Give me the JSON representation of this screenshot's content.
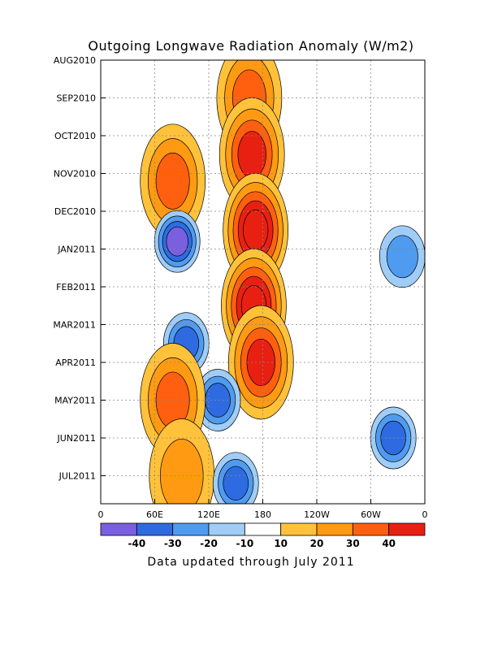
{
  "chart_data": {
    "type": "heatmap",
    "title": "Outgoing Longwave Radiation Anomaly (W/m2)",
    "footer": "Data updated through July 2011",
    "x_ticks": [
      "0",
      "60E",
      "120E",
      "180",
      "120W",
      "60W",
      "0"
    ],
    "x_range": [
      0,
      360
    ],
    "y_ticks": [
      "AUG2010",
      "SEP2010",
      "OCT2010",
      "NOV2010",
      "DEC2010",
      "JAN2011",
      "FEB2011",
      "MAR2011",
      "APR2011",
      "MAY2011",
      "JUN2011",
      "JUL2011"
    ],
    "colorbar": {
      "labels": [
        "-40",
        "-30",
        "-20",
        "-10",
        "10",
        "20",
        "30",
        "40"
      ],
      "colors": [
        "#7a5fe0",
        "#2f6be0",
        "#4f9bf0",
        "#9fcdf7",
        "#ffffff",
        "#ffc23a",
        "#ff9a12",
        "#ff6010",
        "#e82012"
      ]
    },
    "features": [
      {
        "lon": 165,
        "lat_month": 1.0,
        "value": 30
      },
      {
        "lon": 168,
        "lat_month": 2.5,
        "value": 40
      },
      {
        "lon": 172,
        "lat_month": 4.5,
        "value": 50
      },
      {
        "lon": 170,
        "lat_month": 6.5,
        "value": 55
      },
      {
        "lon": 178,
        "lat_month": 8.0,
        "value": 45
      },
      {
        "lon": 80,
        "lat_month": 3.2,
        "value": 30
      },
      {
        "lon": 85,
        "lat_month": 4.8,
        "value": -40
      },
      {
        "lon": 95,
        "lat_month": 7.5,
        "value": -30
      },
      {
        "lon": 130,
        "lat_month": 9.0,
        "value": -30
      },
      {
        "lon": 80,
        "lat_month": 9.0,
        "value": 30
      },
      {
        "lon": 90,
        "lat_month": 11.0,
        "value": 20
      },
      {
        "lon": 150,
        "lat_month": 11.2,
        "value": -30
      },
      {
        "lon": 325,
        "lat_month": 10.0,
        "value": -30
      },
      {
        "lon": 335,
        "lat_month": 5.2,
        "value": -20
      }
    ]
  }
}
